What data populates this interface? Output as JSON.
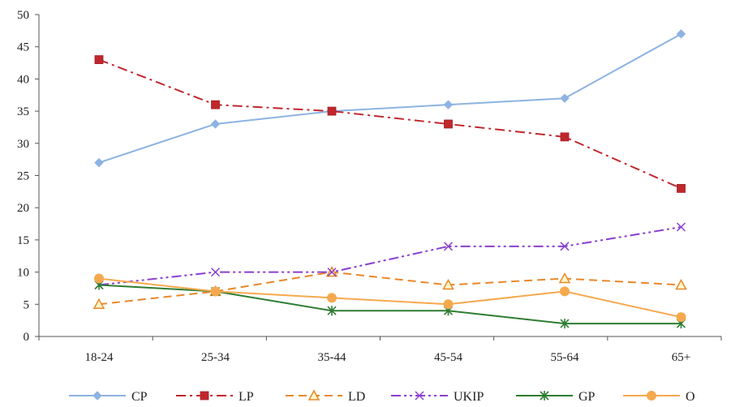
{
  "chart_data": {
    "type": "line",
    "title": "",
    "xlabel": "",
    "ylabel": "",
    "categories": [
      "18-24",
      "25-34",
      "35-44",
      "45-54",
      "55-64",
      "65+"
    ],
    "ylim": [
      0,
      50
    ],
    "yticks": [
      0,
      5,
      10,
      15,
      20,
      25,
      30,
      35,
      40,
      45,
      50
    ],
    "grid": false,
    "legend_position": "bottom",
    "series": [
      {
        "name": "CP",
        "values": [
          27,
          33,
          35,
          36,
          37,
          47
        ],
        "color": "#8db3e2",
        "marker": "diamond",
        "line_style": "solid"
      },
      {
        "name": "LP",
        "values": [
          43,
          36,
          35,
          33,
          31,
          23
        ],
        "color": "#c0272d",
        "marker": "square",
        "line_style": "dash-dot"
      },
      {
        "name": "LD",
        "values": [
          5,
          7,
          10,
          8,
          9,
          8
        ],
        "color": "#e8882a",
        "marker": "triangle",
        "line_style": "dashed"
      },
      {
        "name": "UKIP",
        "values": [
          8,
          10,
          10,
          14,
          14,
          17
        ],
        "color": "#8a3fd0",
        "marker": "x",
        "line_style": "dash-dot-dot"
      },
      {
        "name": "GP",
        "values": [
          8,
          7,
          4,
          4,
          2,
          2
        ],
        "color": "#2e7d32",
        "marker": "star",
        "line_style": "solid"
      },
      {
        "name": "O",
        "values": [
          9,
          7,
          6,
          5,
          7,
          3
        ],
        "color": "#f5a94e",
        "marker": "circle",
        "line_style": "solid"
      }
    ]
  }
}
